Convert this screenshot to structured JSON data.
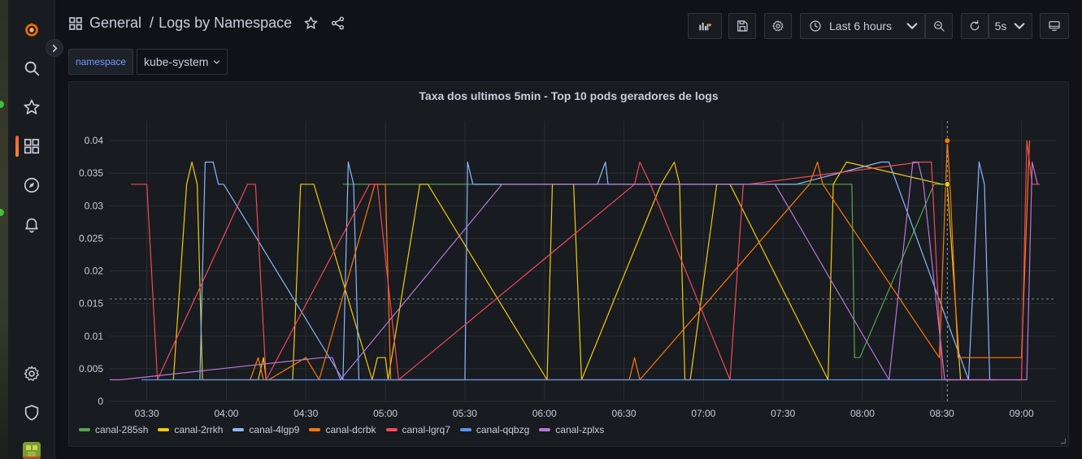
{
  "breadcrumb": {
    "folder": "General",
    "separator": "/",
    "dashboard": "Logs by Namespace"
  },
  "toolbar": {
    "time_range": "Last 6 hours",
    "refresh_interval": "5s"
  },
  "variables": [
    {
      "label": "namespace",
      "value": "kube-system"
    }
  ],
  "sidebar": {
    "items": [
      {
        "icon": "grafana-logo-icon"
      },
      {
        "icon": "search-icon"
      },
      {
        "icon": "star-icon"
      },
      {
        "icon": "dashboards-icon"
      },
      {
        "icon": "explore-compass-icon"
      },
      {
        "icon": "alerting-bell-icon"
      },
      {
        "icon": "gear-icon"
      },
      {
        "icon": "shield-icon"
      },
      {
        "icon": "avatar"
      }
    ]
  },
  "panel": {
    "title": "Taxa dos ultimos 5min - Top 10 pods geradores de logs"
  },
  "chart_data": {
    "type": "line",
    "title": "Taxa dos ultimos 5min - Top 10 pods geradores de logs",
    "y_ticks": [
      "0",
      "0.005",
      "0.01",
      "0.015",
      "0.02",
      "0.025",
      "0.03",
      "0.035",
      "0.04"
    ],
    "ylim": [
      0,
      0.043
    ],
    "x_ticks": [
      "03:30",
      "04:00",
      "04:30",
      "05:00",
      "05:30",
      "06:00",
      "06:30",
      "07:00",
      "07:30",
      "08:00",
      "08:30",
      "09:00"
    ],
    "x_range": [
      "03:16",
      "09:13"
    ],
    "threshold": 0.0157,
    "cursor": "08:32",
    "legend_position": "bottom-left",
    "series": [
      {
        "name": "canal-285sh",
        "color": "#56a64b",
        "x": [
          "04:44",
          "04:49",
          "05:14",
          "05:28",
          "05:32",
          "06:33",
          "06:35",
          "06:44",
          "07:15",
          "07:18",
          "07:53",
          "07:56",
          "07:57",
          "07:59",
          "08:27",
          "08:31"
        ],
        "y": [
          0.0333,
          0.0333,
          0.0333,
          0.0333,
          0.0333,
          0.0333,
          0.0333,
          0.0333,
          0.0333,
          0.0333,
          0.0333,
          0.0333,
          0.0067,
          0.0067,
          0.0333,
          0.0333
        ]
      },
      {
        "name": "canal-2rrkh",
        "color": "#f2cc0c",
        "x": [
          "03:40",
          "03:45",
          "03:47",
          "03:49",
          "03:51",
          "04:12",
          "04:14",
          "04:15",
          "04:25",
          "04:28",
          "04:33",
          "04:55",
          "04:57",
          "05:00",
          "05:01",
          "05:13",
          "05:16",
          "06:01",
          "06:03",
          "06:11",
          "06:14",
          "06:44",
          "06:49",
          "06:51",
          "06:53",
          "06:55",
          "07:05",
          "07:10",
          "07:47",
          "07:49",
          "07:54",
          "08:30",
          "08:32",
          "08:37"
        ],
        "y": [
          0.0033,
          0.0333,
          0.0367,
          0.0333,
          0.0033,
          0.0033,
          0.0067,
          0.0033,
          0.0033,
          0.0333,
          0.0333,
          0.0033,
          0.0067,
          0.0067,
          0.0033,
          0.0333,
          0.0333,
          0.0033,
          0.0333,
          0.0333,
          0.0033,
          0.0333,
          0.0367,
          0.0333,
          0.0033,
          0.0033,
          0.0333,
          0.0333,
          0.0033,
          0.0333,
          0.0367,
          0.0333,
          0.0333,
          0.0033
        ]
      },
      {
        "name": "canal-4lgp9",
        "color": "#8ab8ff",
        "x": [
          "03:50",
          "03:52",
          "03:55",
          "03:57",
          "03:59",
          "04:44",
          "04:46",
          "04:48",
          "04:50",
          "05:30",
          "05:31",
          "05:33",
          "06:20",
          "06:23",
          "06:24",
          "07:31",
          "07:35",
          "08:07",
          "08:10",
          "08:40",
          "08:44",
          "08:46",
          "08:48"
        ],
        "y": [
          0.0033,
          0.0367,
          0.0367,
          0.0333,
          0.0333,
          0.0033,
          0.0367,
          0.0333,
          0.0033,
          0.0033,
          0.0367,
          0.0333,
          0.0333,
          0.0367,
          0.0333,
          0.0333,
          0.0333,
          0.0367,
          0.0367,
          0.0033,
          0.0367,
          0.0333,
          0.0033
        ]
      },
      {
        "name": "canal-dcrbk",
        "color": "#ff780a",
        "x": [
          "04:09",
          "04:12",
          "04:14",
          "04:16",
          "04:30",
          "04:35",
          "04:56",
          "04:58",
          "05:00",
          "05:02",
          "06:32",
          "06:34",
          "06:36",
          "07:40",
          "07:43",
          "07:45",
          "08:29",
          "08:32",
          "08:33",
          "08:36",
          "08:40",
          "09:00",
          "09:03"
        ],
        "y": [
          0.0033,
          0.0067,
          0.0033,
          0.0033,
          0.0067,
          0.0033,
          0.0333,
          0.0333,
          0.0333,
          0.0033,
          0.0033,
          0.0067,
          0.0033,
          0.0333,
          0.0367,
          0.0333,
          0.0067,
          0.04,
          0.0333,
          0.0067,
          0.0067,
          0.0067,
          0.04
        ]
      },
      {
        "name": "canal-lgrq7",
        "color": "#f2495c",
        "x": [
          "03:24",
          "03:30",
          "03:34",
          "04:08",
          "04:11",
          "04:15",
          "04:54",
          "04:57",
          "05:05",
          "06:34",
          "06:36",
          "06:40",
          "07:10",
          "07:15",
          "07:17",
          "08:22",
          "08:26",
          "08:30",
          "08:33",
          "09:00",
          "09:02",
          "09:04",
          "09:07"
        ],
        "y": [
          0.0333,
          0.0333,
          0.0033,
          0.0333,
          0.0333,
          0.0033,
          0.0333,
          0.0333,
          0.0033,
          0.0333,
          0.0367,
          0.0333,
          0.0033,
          0.0333,
          0.0333,
          0.0367,
          0.0367,
          0.0033,
          0.0033,
          0.0033,
          0.04,
          0.0333,
          0.0333
        ]
      },
      {
        "name": "canal-qqbzg",
        "color": "#5794f2",
        "x": [
          "03:28",
          "03:34",
          "03:40",
          "03:46",
          "04:00",
          "04:08",
          "04:58",
          "05:04",
          "05:28",
          "05:38",
          "06:20",
          "06:26",
          "06:48",
          "06:56",
          "07:18",
          "07:22",
          "07:35",
          "07:44",
          "08:02",
          "08:07",
          "08:31",
          "08:34",
          "08:44",
          "08:50"
        ],
        "y": [
          0.0033,
          0.0033,
          0.0033,
          0.0033,
          0.0033,
          0.0033,
          0.0033,
          0.0033,
          0.0033,
          0.0033,
          0.0033,
          0.0033,
          0.0033,
          0.0033,
          0.0033,
          0.0033,
          0.0033,
          0.0033,
          0.0033,
          0.0033,
          0.0033,
          0.0033,
          0.0033,
          0.0033
        ]
      },
      {
        "name": "canal-zplxs",
        "color": "#b877d9",
        "x": [
          "03:16",
          "03:20",
          "04:36",
          "04:38",
          "04:40",
          "04:43",
          "05:44",
          "05:49",
          "06:19",
          "06:22",
          "07:23",
          "07:27",
          "08:10",
          "08:19",
          "08:21",
          "08:23",
          "08:31",
          "08:33",
          "09:02",
          "09:04",
          "09:06"
        ],
        "y": [
          0.0033,
          0.0033,
          0.0067,
          0.0067,
          0.0067,
          0.0033,
          0.0333,
          0.0333,
          0.0333,
          0.0333,
          0.0333,
          0.0333,
          0.0033,
          0.0367,
          0.0367,
          0.0333,
          0.0033,
          0.0033,
          0.0033,
          0.0367,
          0.0333
        ]
      }
    ]
  }
}
